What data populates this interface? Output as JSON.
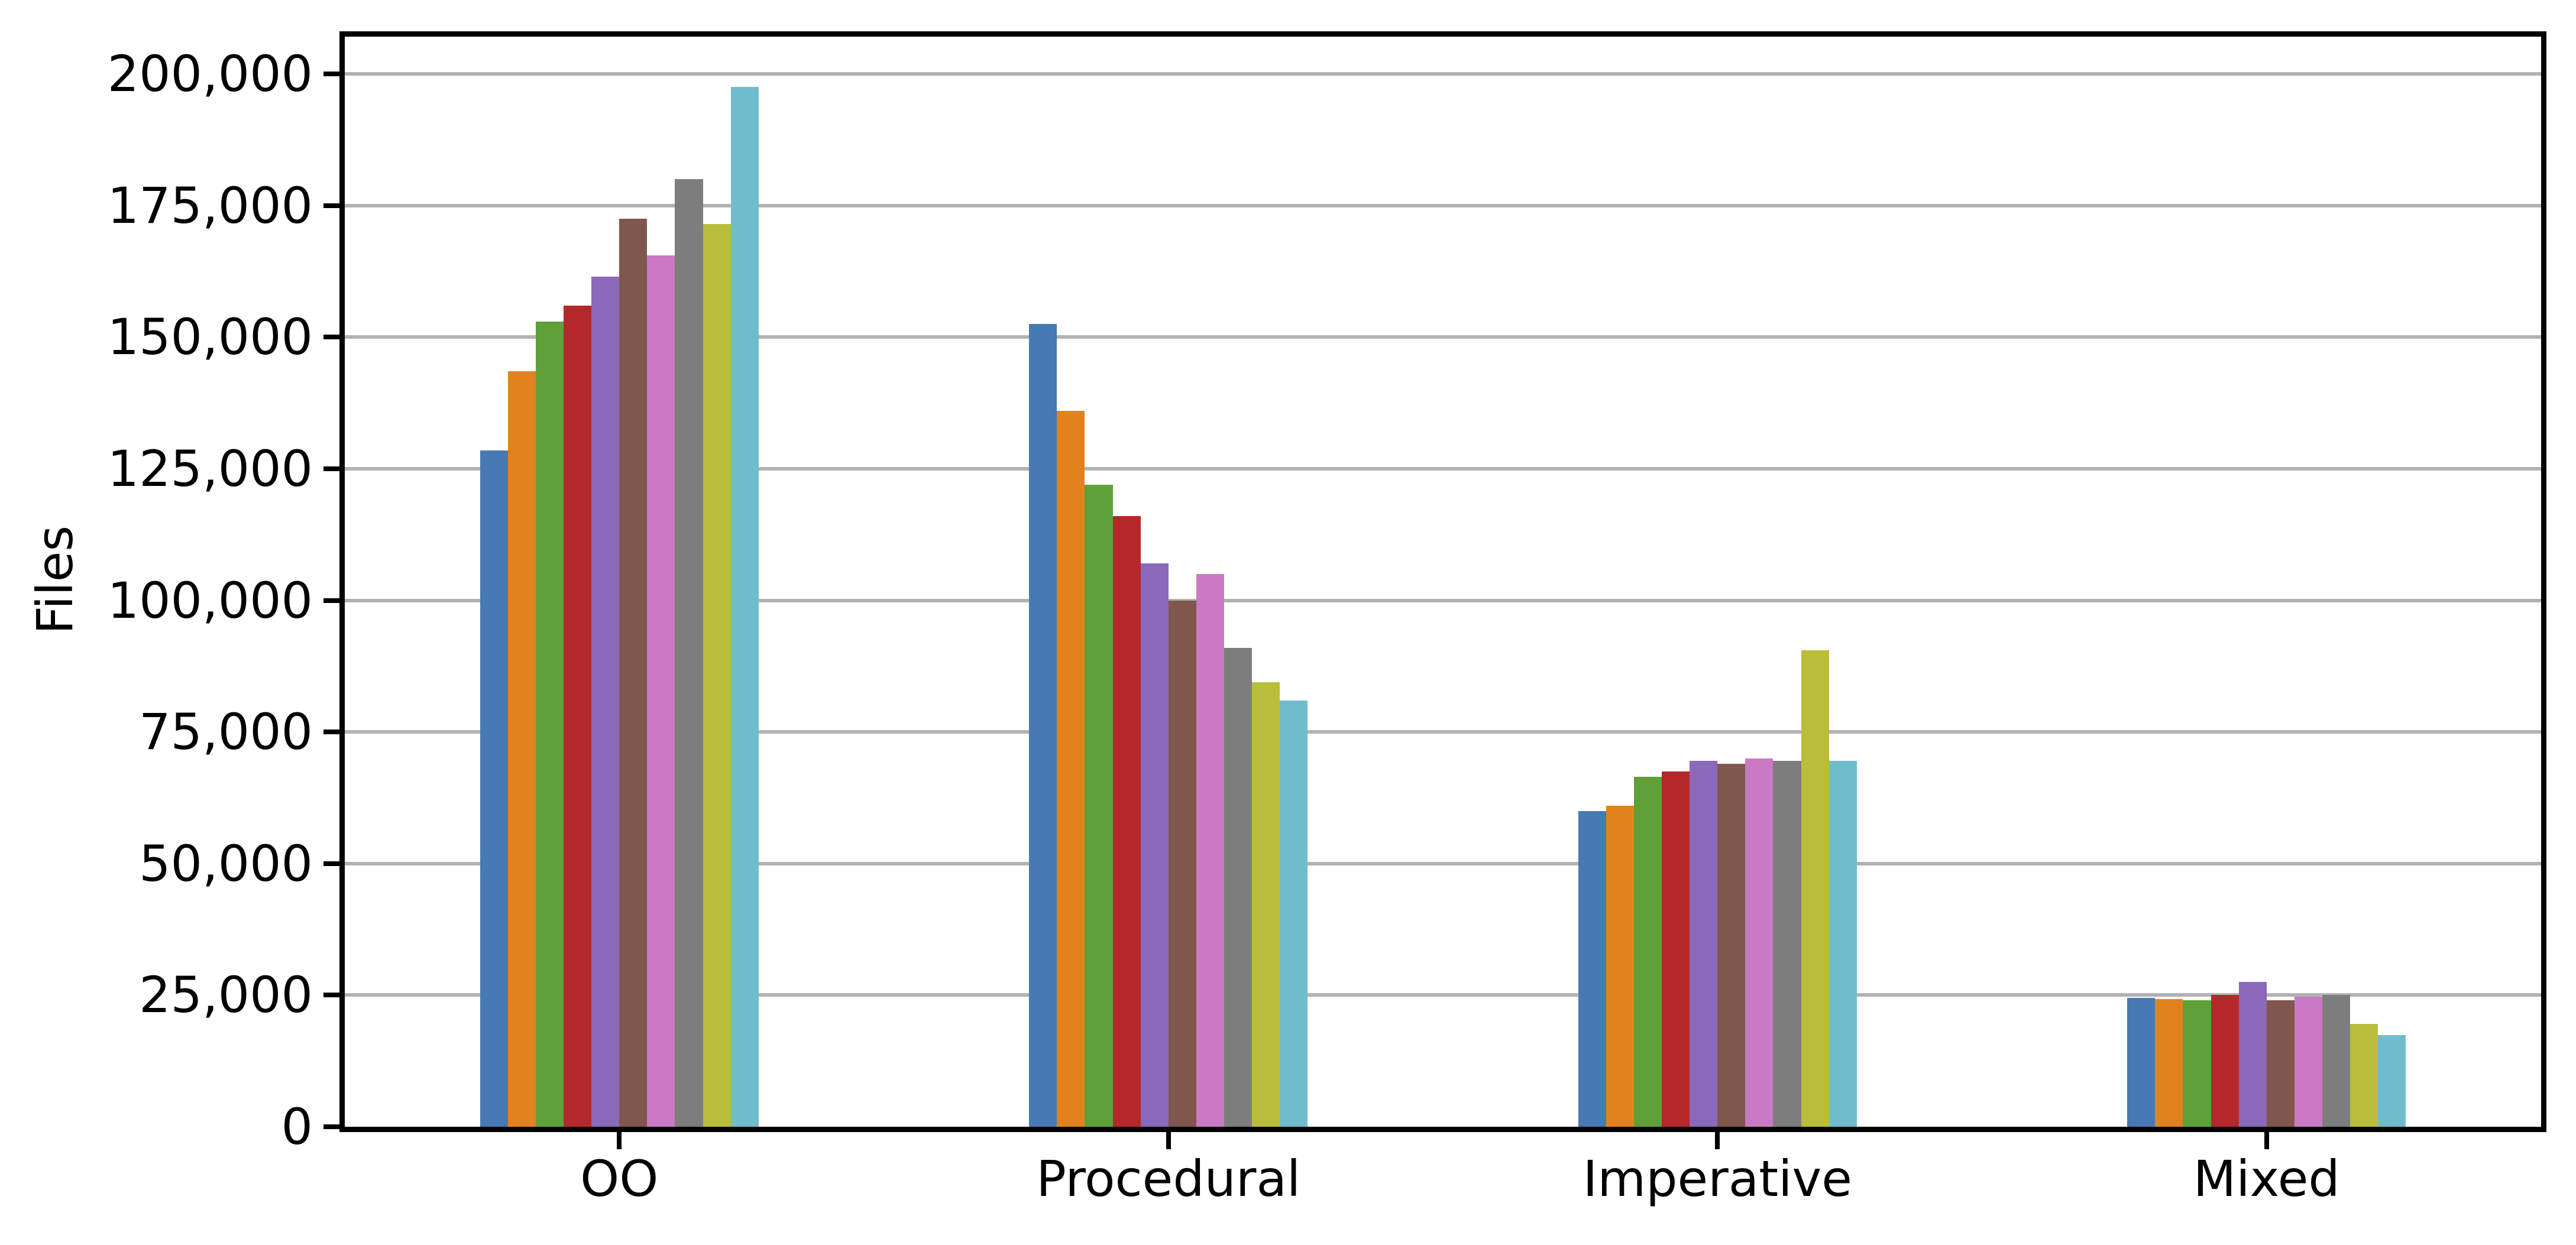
{
  "chart_data": {
    "type": "bar",
    "title": "",
    "xlabel": "",
    "ylabel": "Files",
    "categories": [
      "OO",
      "Procedural",
      "Imperative",
      "Mixed"
    ],
    "series": [
      {
        "color": "#4779B3",
        "values": [
          128500,
          152500,
          60000,
          24500
        ]
      },
      {
        "color": "#E2821E",
        "values": [
          143500,
          136000,
          61000,
          24300
        ]
      },
      {
        "color": "#5FA038",
        "values": [
          153000,
          122000,
          66500,
          24000
        ]
      },
      {
        "color": "#B4282C",
        "values": [
          156000,
          116000,
          67500,
          25000
        ]
      },
      {
        "color": "#8A68BA",
        "values": [
          161500,
          107000,
          69500,
          27500
        ]
      },
      {
        "color": "#7F574D",
        "values": [
          172500,
          100000,
          69000,
          24000
        ]
      },
      {
        "color": "#CA79C4",
        "values": [
          165500,
          105000,
          70000,
          24700
        ]
      },
      {
        "color": "#7D7D7D",
        "values": [
          180000,
          91000,
          69500,
          25000
        ]
      },
      {
        "color": "#BABD39",
        "values": [
          171500,
          84500,
          90500,
          19500
        ]
      },
      {
        "color": "#6FBDCC",
        "values": [
          197500,
          81000,
          69500,
          17400
        ]
      }
    ],
    "ylim": [
      0,
      200000
    ],
    "ytick_step": 25000,
    "ytick_labels": [
      "0",
      "25,000",
      "50,000",
      "75,000",
      "100,000",
      "125,000",
      "150,000",
      "175,000",
      "200,000"
    ],
    "grid": "horizontal",
    "grid_color": "#B2B2B2",
    "axis_color": "#000000",
    "background_color": "#FFFFFF",
    "legend": "none"
  }
}
